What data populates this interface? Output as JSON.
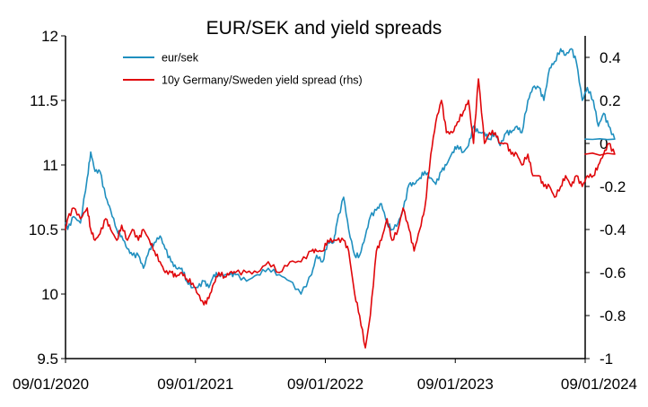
{
  "chart_data": {
    "type": "line",
    "title": "EUR/SEK and yield spreads",
    "xlabel": "",
    "ylabel": "",
    "x_range": [
      "09/01/2020",
      "09/01/2024"
    ],
    "x_tick_labels": [
      "09/01/2020",
      "09/01/2021",
      "09/01/2022",
      "09/01/2023",
      "09/01/2024"
    ],
    "y_left": {
      "range": [
        9.5,
        12
      ],
      "ticks": [
        "9.5",
        "10",
        "10.5",
        "11",
        "11.5",
        "12"
      ]
    },
    "y_right": {
      "range": [
        -1,
        0.5
      ],
      "ticks": [
        "-1",
        "-0.8",
        "-0.6",
        "-0.4",
        "-0.2",
        "0",
        "0.2",
        "0.4"
      ]
    },
    "grid": false,
    "legend": "top-left",
    "series": [
      {
        "name": "eur/sek",
        "axis": "left",
        "color": "#1f8fbf",
        "points": [
          [
            "09/01/2020",
            10.55
          ],
          [
            "15/01/2020",
            10.5
          ],
          [
            "01/02/2020",
            10.6
          ],
          [
            "20/02/2020",
            10.55
          ],
          [
            "10/03/2020",
            10.9
          ],
          [
            "20/03/2020",
            11.1
          ],
          [
            "01/04/2020",
            10.95
          ],
          [
            "15/04/2020",
            10.95
          ],
          [
            "01/05/2020",
            10.75
          ],
          [
            "15/05/2020",
            10.65
          ],
          [
            "01/06/2020",
            10.5
          ],
          [
            "15/06/2020",
            10.45
          ],
          [
            "01/07/2020",
            10.35
          ],
          [
            "15/07/2020",
            10.3
          ],
          [
            "01/08/2020",
            10.3
          ],
          [
            "15/08/2020",
            10.2
          ],
          [
            "01/09/2020",
            10.35
          ],
          [
            "15/09/2020",
            10.4
          ],
          [
            "01/10/2020",
            10.45
          ],
          [
            "15/10/2020",
            10.35
          ],
          [
            "01/11/2020",
            10.25
          ],
          [
            "15/11/2020",
            10.2
          ],
          [
            "01/12/2020",
            10.2
          ],
          [
            "15/12/2020",
            10.1
          ],
          [
            "01/01/2021",
            10.05
          ],
          [
            "15/01/2021",
            10.05
          ],
          [
            "01/02/2021",
            10.1
          ],
          [
            "15/02/2021",
            10.05
          ],
          [
            "01/03/2021",
            10.15
          ],
          [
            "15/03/2021",
            10.15
          ],
          [
            "01/04/2021",
            10.15
          ],
          [
            "15/04/2021",
            10.15
          ],
          [
            "01/05/2021",
            10.15
          ],
          [
            "01/06/2021",
            10.1
          ],
          [
            "01/07/2021",
            10.15
          ],
          [
            "01/08/2021",
            10.2
          ],
          [
            "01/09/2021",
            10.15
          ],
          [
            "01/10/2021",
            10.1
          ],
          [
            "01/11/2021",
            10.0
          ],
          [
            "01/12/2021",
            10.15
          ],
          [
            "15/12/2021",
            10.3
          ],
          [
            "01/01/2022",
            10.25
          ],
          [
            "15/01/2022",
            10.4
          ],
          [
            "01/02/2022",
            10.4
          ],
          [
            "10/02/2022",
            10.55
          ],
          [
            "01/03/2022",
            10.75
          ],
          [
            "15/03/2022",
            10.5
          ],
          [
            "01/04/2022",
            10.3
          ],
          [
            "15/04/2022",
            10.3
          ],
          [
            "01/05/2022",
            10.45
          ],
          [
            "15/05/2022",
            10.6
          ],
          [
            "01/06/2022",
            10.65
          ],
          [
            "15/06/2022",
            10.7
          ],
          [
            "01/07/2022",
            10.55
          ],
          [
            "15/07/2022",
            10.5
          ],
          [
            "01/08/2022",
            10.55
          ],
          [
            "15/08/2022",
            10.65
          ],
          [
            "01/09/2022",
            10.85
          ],
          [
            "15/09/2022",
            10.85
          ],
          [
            "01/10/2022",
            10.9
          ],
          [
            "15/10/2022",
            10.95
          ],
          [
            "01/11/2022",
            10.9
          ],
          [
            "15/11/2022",
            10.85
          ],
          [
            "01/12/2022",
            10.95
          ],
          [
            "15/12/2022",
            11.0
          ],
          [
            "01/01/2023",
            11.1
          ],
          [
            "15/01/2023",
            11.15
          ],
          [
            "01/02/2023",
            11.1
          ],
          [
            "15/02/2023",
            11.15
          ],
          [
            "01/03/2023",
            11.3
          ],
          [
            "15/03/2023",
            11.25
          ],
          [
            "01/04/2023",
            11.25
          ],
          [
            "15/04/2023",
            11.2
          ],
          [
            "01/05/2023",
            11.25
          ],
          [
            "15/05/2023",
            11.15
          ],
          [
            "01/06/2023",
            11.25
          ],
          [
            "15/06/2023",
            11.25
          ],
          [
            "01/07/2023",
            11.3
          ],
          [
            "15/07/2023",
            11.25
          ],
          [
            "01/08/2023",
            11.5
          ],
          [
            "15/08/2023",
            11.6
          ],
          [
            "01/09/2023",
            11.6
          ],
          [
            "15/09/2023",
            11.5
          ],
          [
            "01/10/2023",
            11.75
          ],
          [
            "15/10/2023",
            11.8
          ],
          [
            "01/11/2023",
            11.9
          ],
          [
            "15/11/2023",
            11.85
          ],
          [
            "01/12/2023",
            11.9
          ],
          [
            "15/12/2023",
            11.8
          ],
          [
            "01/01/2024",
            11.5
          ],
          [
            "15/01/2024",
            11.6
          ],
          [
            "01/02/2024",
            11.5
          ],
          [
            "15/02/2024",
            11.3
          ],
          [
            "01/03/2024",
            11.4
          ],
          [
            "15/03/2024",
            11.3
          ],
          [
            "01/04/2024",
            11.2
          ],
          [
            "09/01/2024",
            11.2
          ]
        ]
      },
      {
        "name": "10y Germany/Sweden yield spread (rhs)",
        "axis": "right",
        "color": "#e0060a",
        "points": [
          [
            "09/01/2020",
            -0.4
          ],
          [
            "15/01/2020",
            -0.35
          ],
          [
            "01/02/2020",
            -0.3
          ],
          [
            "20/02/2020",
            -0.35
          ],
          [
            "10/03/2020",
            -0.3
          ],
          [
            "20/03/2020",
            -0.4
          ],
          [
            "01/04/2020",
            -0.45
          ],
          [
            "15/04/2020",
            -0.42
          ],
          [
            "01/05/2020",
            -0.35
          ],
          [
            "15/05/2020",
            -0.4
          ],
          [
            "01/06/2020",
            -0.45
          ],
          [
            "15/06/2020",
            -0.38
          ],
          [
            "01/07/2020",
            -0.45
          ],
          [
            "15/07/2020",
            -0.4
          ],
          [
            "01/08/2020",
            -0.45
          ],
          [
            "15/08/2020",
            -0.4
          ],
          [
            "01/09/2020",
            -0.45
          ],
          [
            "15/09/2020",
            -0.5
          ],
          [
            "01/10/2020",
            -0.55
          ],
          [
            "15/10/2020",
            -0.6
          ],
          [
            "01/11/2020",
            -0.6
          ],
          [
            "15/11/2020",
            -0.62
          ],
          [
            "01/12/2020",
            -0.6
          ],
          [
            "15/12/2020",
            -0.63
          ],
          [
            "01/01/2021",
            -0.65
          ],
          [
            "15/01/2021",
            -0.7
          ],
          [
            "01/02/2021",
            -0.75
          ],
          [
            "15/02/2021",
            -0.72
          ],
          [
            "01/03/2021",
            -0.65
          ],
          [
            "15/03/2021",
            -0.6
          ],
          [
            "01/04/2021",
            -0.62
          ],
          [
            "15/04/2021",
            -0.6
          ],
          [
            "01/05/2021",
            -0.6
          ],
          [
            "01/06/2021",
            -0.6
          ],
          [
            "01/07/2021",
            -0.6
          ],
          [
            "01/08/2021",
            -0.55
          ],
          [
            "01/09/2021",
            -0.6
          ],
          [
            "01/10/2021",
            -0.55
          ],
          [
            "01/11/2021",
            -0.55
          ],
          [
            "01/12/2021",
            -0.5
          ],
          [
            "15/12/2021",
            -0.5
          ],
          [
            "01/01/2022",
            -0.5
          ],
          [
            "15/01/2022",
            -0.45
          ],
          [
            "01/02/2022",
            -0.45
          ],
          [
            "10/02/2022",
            -0.45
          ],
          [
            "01/03/2022",
            -0.45
          ],
          [
            "15/03/2022",
            -0.5
          ],
          [
            "01/04/2022",
            -0.7
          ],
          [
            "15/04/2022",
            -0.8
          ],
          [
            "01/05/2022",
            -0.95
          ],
          [
            "15/05/2022",
            -0.8
          ],
          [
            "01/06/2022",
            -0.5
          ],
          [
            "15/06/2022",
            -0.45
          ],
          [
            "01/07/2022",
            -0.35
          ],
          [
            "15/07/2022",
            -0.45
          ],
          [
            "01/08/2022",
            -0.4
          ],
          [
            "15/08/2022",
            -0.3
          ],
          [
            "01/09/2022",
            -0.4
          ],
          [
            "15/09/2022",
            -0.5
          ],
          [
            "01/10/2022",
            -0.4
          ],
          [
            "15/10/2022",
            -0.3
          ],
          [
            "01/11/2022",
            -0.05
          ],
          [
            "15/11/2022",
            0.1
          ],
          [
            "01/12/2022",
            0.2
          ],
          [
            "15/12/2022",
            0.05
          ],
          [
            "01/01/2023",
            0.05
          ],
          [
            "15/01/2023",
            0.1
          ],
          [
            "01/02/2023",
            0.15
          ],
          [
            "15/02/2023",
            0.2
          ],
          [
            "01/03/2023",
            0.0
          ],
          [
            "15/03/2023",
            0.3
          ],
          [
            "01/04/2023",
            0.0
          ],
          [
            "15/04/2023",
            0.05
          ],
          [
            "01/05/2023",
            0.05
          ],
          [
            "15/05/2023",
            0.0
          ],
          [
            "01/06/2023",
            0.0
          ],
          [
            "15/06/2023",
            -0.05
          ],
          [
            "01/07/2023",
            -0.05
          ],
          [
            "15/07/2023",
            -0.1
          ],
          [
            "01/08/2023",
            -0.05
          ],
          [
            "15/08/2023",
            -0.15
          ],
          [
            "01/09/2023",
            -0.15
          ],
          [
            "15/09/2023",
            -0.2
          ],
          [
            "01/10/2023",
            -0.2
          ],
          [
            "15/10/2023",
            -0.25
          ],
          [
            "01/11/2023",
            -0.2
          ],
          [
            "15/11/2023",
            -0.15
          ],
          [
            "01/12/2023",
            -0.2
          ],
          [
            "15/12/2023",
            -0.15
          ],
          [
            "01/01/2024",
            -0.2
          ],
          [
            "15/01/2024",
            -0.15
          ],
          [
            "01/02/2024",
            -0.15
          ],
          [
            "15/02/2024",
            -0.1
          ],
          [
            "01/03/2024",
            -0.05
          ],
          [
            "15/03/2024",
            0.0
          ],
          [
            "01/04/2024",
            -0.05
          ],
          [
            "09/01/2024",
            -0.05
          ]
        ]
      }
    ]
  }
}
